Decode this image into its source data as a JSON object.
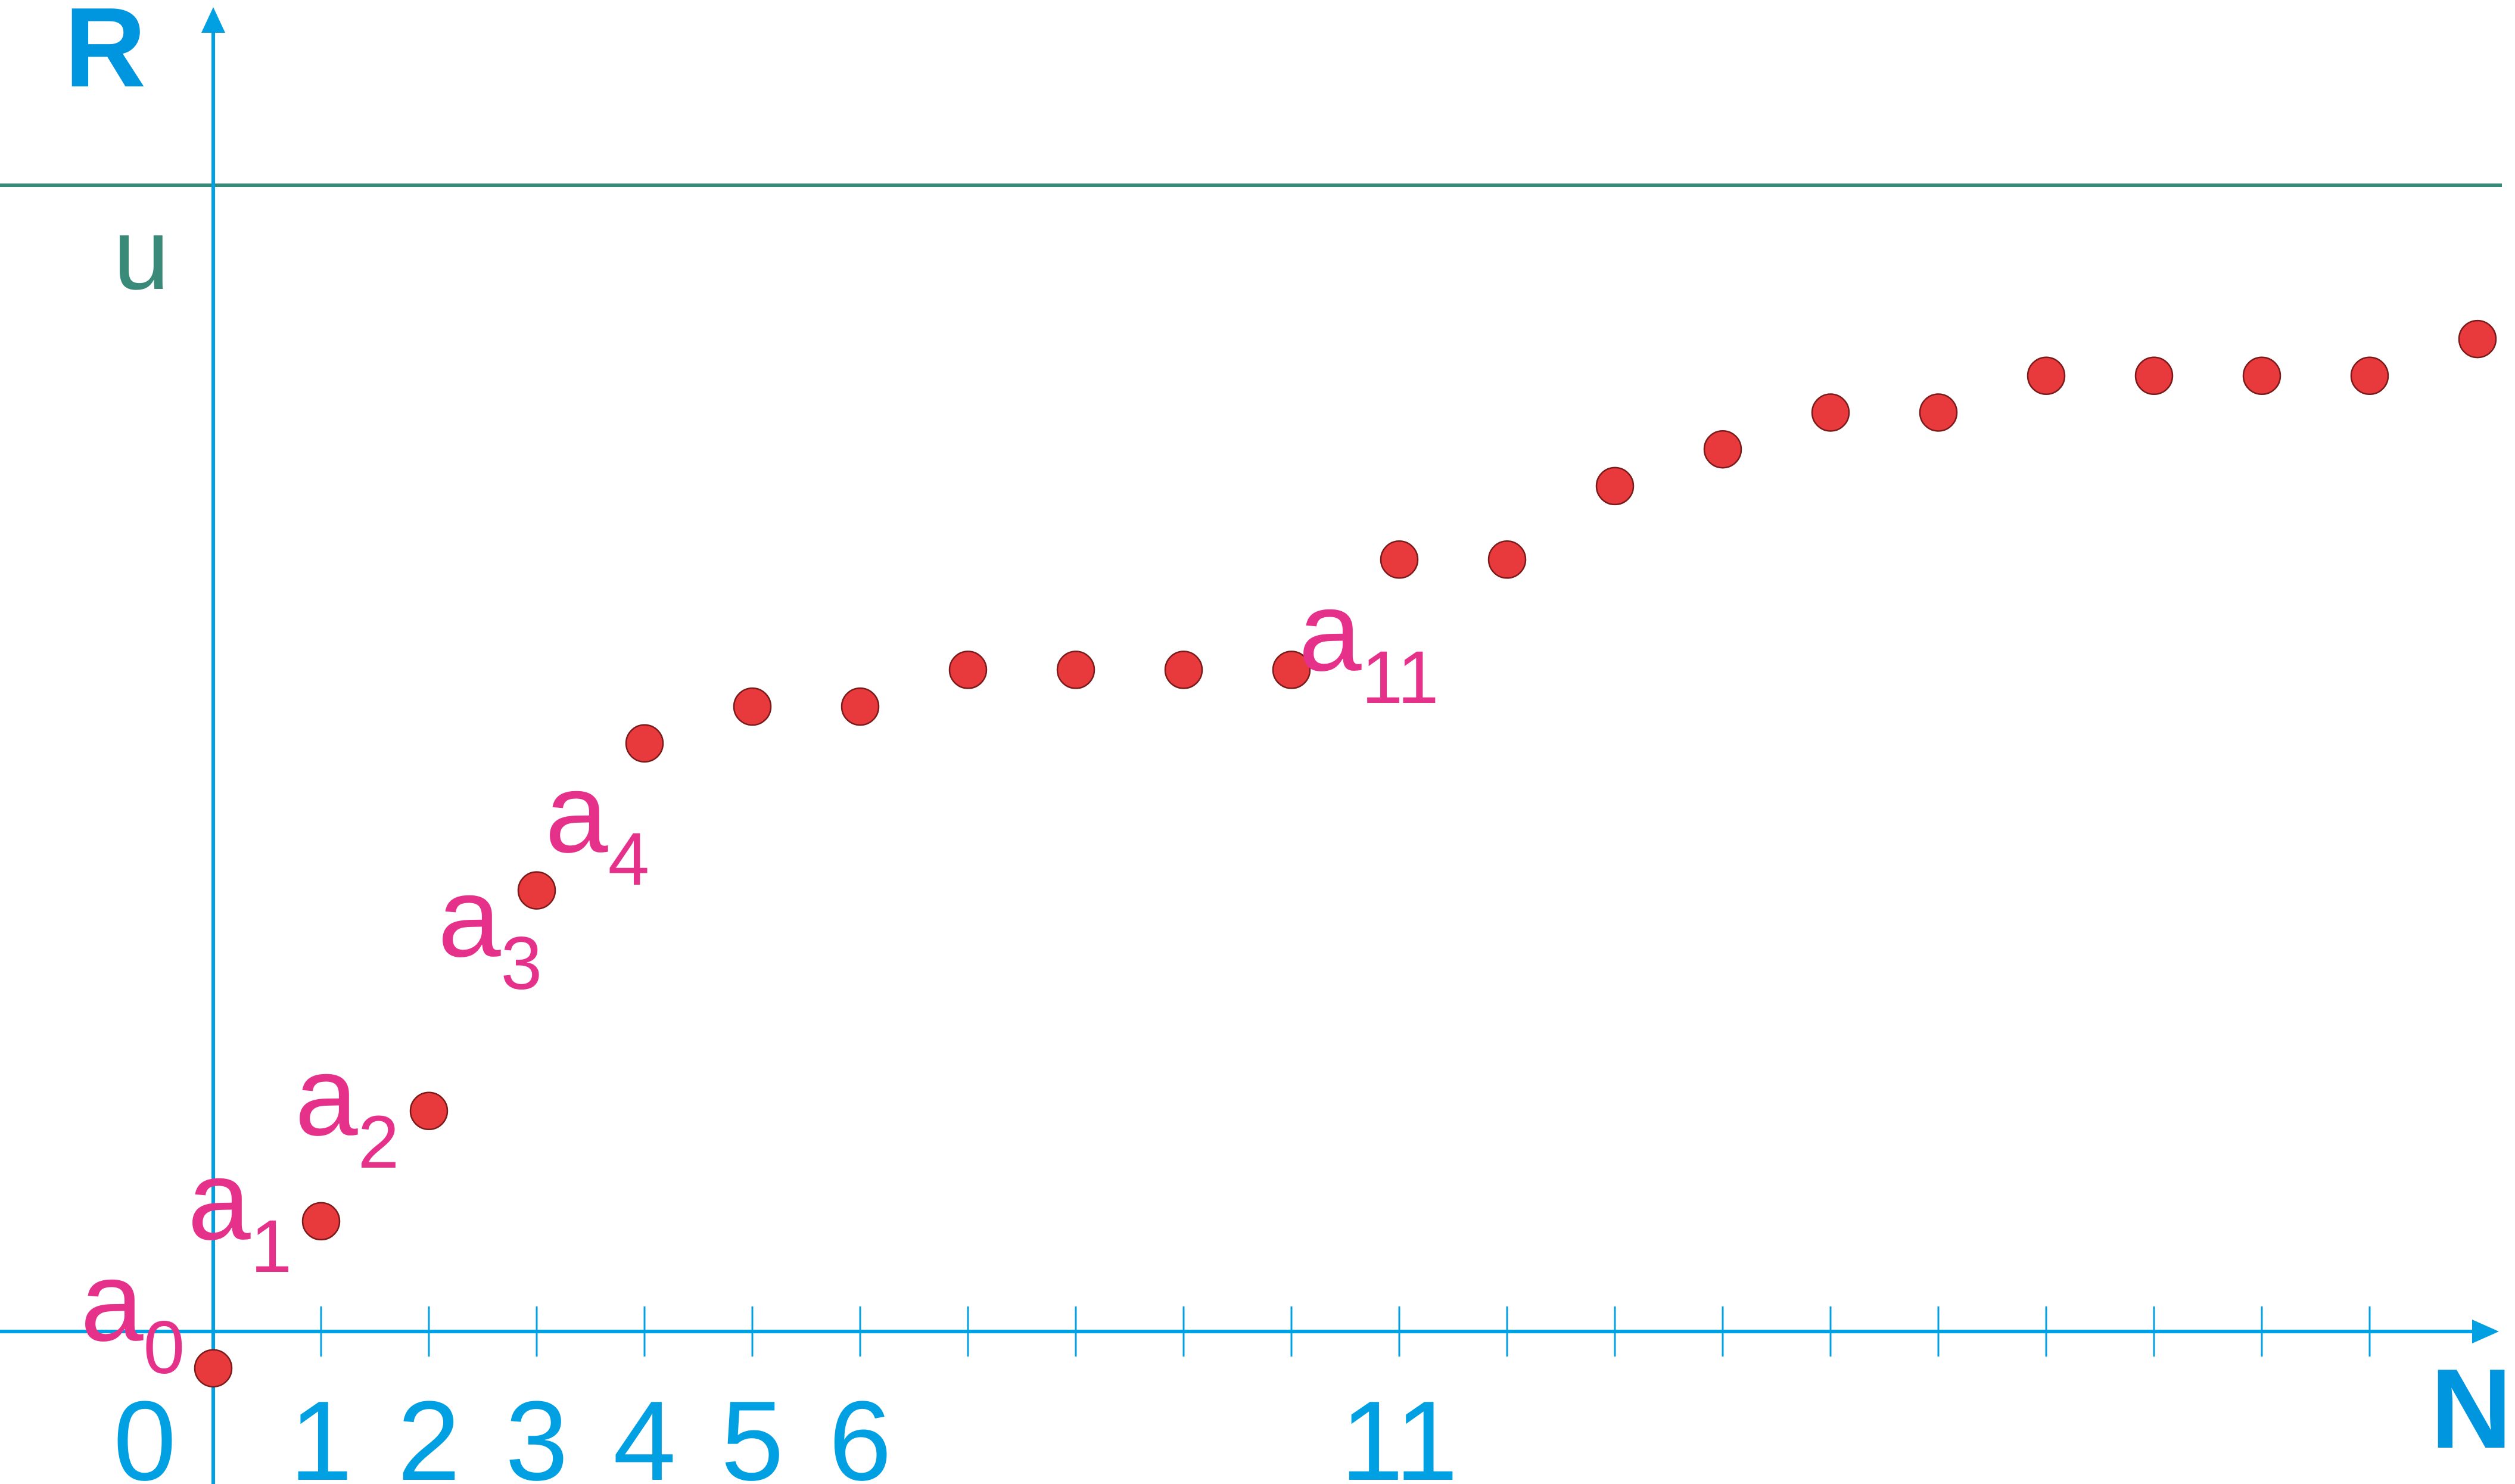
{
  "chart_data": {
    "type": "scatter",
    "title": "",
    "xlabel": "N",
    "ylabel": "R",
    "xlim": [
      0,
      21
    ],
    "ylim": [
      -0.1,
      3.2
    ],
    "grid": false,
    "legend": "none",
    "x": [
      0,
      1,
      2,
      3,
      4,
      5,
      6,
      7,
      8,
      9,
      10,
      11,
      12,
      13,
      14,
      15,
      16,
      17,
      18,
      19,
      20,
      21
    ],
    "y": [
      -0.1,
      0.3,
      0.6,
      1.2,
      1.6,
      1.7,
      1.7,
      1.8,
      1.8,
      1.8,
      1.8,
      2.1,
      2.1,
      2.3,
      2.4,
      2.5,
      2.5,
      2.6,
      2.6,
      2.6,
      2.6,
      2.7
    ],
    "x_tick_labels": [
      {
        "x": 0,
        "text": "0"
      },
      {
        "x": 1,
        "text": "1"
      },
      {
        "x": 2,
        "text": "2"
      },
      {
        "x": 3,
        "text": "3"
      },
      {
        "x": 4,
        "text": "4"
      },
      {
        "x": 5,
        "text": "5"
      },
      {
        "x": 6,
        "text": "6"
      },
      {
        "x": 11,
        "text": "11"
      }
    ],
    "upper_bound": {
      "label": "u",
      "y": 3.2
    },
    "term_labels": [
      {
        "index": 0,
        "base": "a",
        "sub": "0"
      },
      {
        "index": 1,
        "base": "a",
        "sub": "1"
      },
      {
        "index": 2,
        "base": "a",
        "sub": "2"
      },
      {
        "index": 3,
        "base": "a",
        "sub": "3"
      },
      {
        "index": 4,
        "base": "a",
        "sub": "4"
      },
      {
        "index": 11,
        "base": "a",
        "sub": "11"
      }
    ]
  },
  "colors": {
    "axis": "#00a0e3",
    "axis_title": "#0095df",
    "bound_line": "#3a8a7a",
    "points": "#e8393c",
    "term_labels": "#e6318a"
  }
}
